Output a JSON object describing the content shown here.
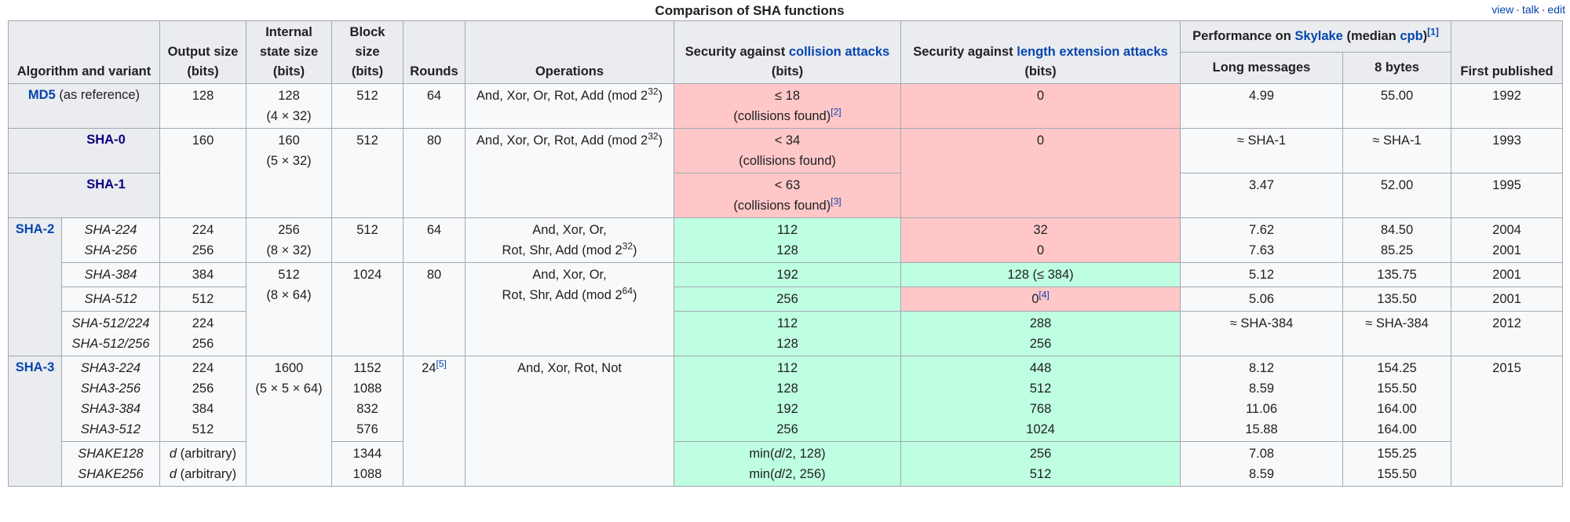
{
  "caption": "Comparison of SHA functions",
  "vte": {
    "view": "view",
    "talk": "talk",
    "edit": "edit",
    "sep": "·"
  },
  "headers": {
    "algorithm": "Algorithm and variant",
    "output_size": [
      "Output size",
      "(bits)"
    ],
    "state_size": [
      "Internal",
      "state size",
      "(bits)"
    ],
    "block_size": [
      "Block size",
      "(bits)"
    ],
    "rounds": "Rounds",
    "operations": "Operations",
    "collision": {
      "pre": "Security against ",
      "link": "collision attacks",
      "unit": "(bits)"
    },
    "length_ext": {
      "pre": "Security against ",
      "link": "length extension attacks",
      "unit": "(bits)"
    },
    "performance": {
      "pre": "Performance on ",
      "link1": "Skylake",
      "mid": " (median ",
      "link2": "cpb",
      "post": ")",
      "ref": "[1]"
    },
    "long_messages": "Long messages",
    "eight_bytes": "8 bytes",
    "first_published": "First published"
  },
  "md5": {
    "name": "MD5",
    "note": " (as reference)",
    "output": "128",
    "state": [
      "128",
      "(4 × 32)"
    ],
    "block": "512",
    "rounds": "64",
    "ops_pre": "And, Xor, Or, Rot, Add (mod 2",
    "ops_exp": "32",
    "ops_post": ")",
    "collision": [
      "≤ 18",
      "(collisions found)"
    ],
    "collision_ref": "[2]",
    "length_ext": "0",
    "perf_long": "4.99",
    "perf_8": "55.00",
    "year": "1992"
  },
  "sha0": {
    "name": "SHA-0",
    "output": "160",
    "state": [
      "160",
      "(5 × 32)"
    ],
    "block": "512",
    "rounds": "80",
    "ops_pre": "And, Xor, Or, Rot, Add (mod 2",
    "ops_exp": "32",
    "ops_post": ")",
    "collision": [
      "< 34",
      "(collisions found)"
    ],
    "length_ext": "0",
    "perf_long": "≈ SHA-1",
    "perf_8": "≈ SHA-1",
    "year": "1993"
  },
  "sha1": {
    "name": "SHA-1",
    "collision": [
      "< 63",
      "(collisions found)"
    ],
    "collision_ref": "[3]",
    "perf_long": "3.47",
    "perf_8": "52.00",
    "year": "1995"
  },
  "sha2": {
    "family": "SHA-2",
    "g1": {
      "variants": [
        "SHA-224",
        "SHA-256"
      ],
      "outputs": [
        "224",
        "256"
      ],
      "state": [
        "256",
        "(8 × 32)"
      ],
      "block": "512",
      "rounds": "64",
      "ops_line1": "And, Xor, Or,",
      "ops_pre": "Rot, Shr, Add (mod 2",
      "ops_exp": "32",
      "ops_post": ")",
      "collision": [
        "112",
        "128"
      ],
      "length_ext": [
        "32",
        "0"
      ],
      "perf_long": [
        "7.62",
        "7.63"
      ],
      "perf_8": [
        "84.50",
        "85.25"
      ],
      "year": [
        "2004",
        "2001"
      ]
    },
    "sha384": {
      "name": "SHA-384",
      "output": "384",
      "collision": "192",
      "length_ext": "128 (≤ 384)",
      "perf_long": "5.12",
      "perf_8": "135.75",
      "year": "2001"
    },
    "sha512": {
      "name": "SHA-512",
      "output": "512",
      "collision": "256",
      "length_ext": "0",
      "length_ext_ref": "[4]",
      "perf_long": "5.06",
      "perf_8": "135.50",
      "year": "2001"
    },
    "g2": {
      "state": [
        "512",
        "(8 × 64)"
      ],
      "block": "1024",
      "rounds": "80",
      "ops_line1": "And, Xor, Or,",
      "ops_pre": "Rot, Shr, Add (mod 2",
      "ops_exp": "64",
      "ops_post": ")"
    },
    "trunc": {
      "variants": [
        "SHA-512/224",
        "SHA-512/256"
      ],
      "outputs": [
        "224",
        "256"
      ],
      "collision": [
        "112",
        "128"
      ],
      "length_ext": [
        "288",
        "256"
      ],
      "perf_long": "≈ SHA-384",
      "perf_8": "≈ SHA-384",
      "year": "2012"
    }
  },
  "sha3": {
    "family": "SHA-3",
    "main": {
      "variants": [
        "SHA3-224",
        "SHA3-256",
        "SHA3-384",
        "SHA3-512"
      ],
      "outputs": [
        "224",
        "256",
        "384",
        "512"
      ],
      "state": [
        "1600",
        "(5 × 5 × 64)"
      ],
      "blocks": [
        "1152",
        "1088",
        "832",
        "576"
      ],
      "rounds": "24",
      "rounds_ref": "[5]",
      "ops": "And, Xor, Rot, Not",
      "collision": [
        "112",
        "128",
        "192",
        "256"
      ],
      "length_ext": [
        "448",
        "512",
        "768",
        "1024"
      ],
      "perf_long": [
        "8.12",
        "8.59",
        "11.06",
        "15.88"
      ],
      "perf_8": [
        "154.25",
        "155.50",
        "164.00",
        "164.00"
      ],
      "year": "2015"
    },
    "shake": {
      "variants": [
        "SHAKE128",
        "SHAKE256"
      ],
      "out_var": "d",
      "out_suffix": " (arbitrary)",
      "blocks": [
        "1344",
        "1088"
      ],
      "coll_pre": "min(",
      "coll_var": "d",
      "coll_mid": [
        "/2, 128)",
        "/2, 256)"
      ],
      "length_ext": [
        "256",
        "512"
      ],
      "perf_long": [
        "7.08",
        "8.59"
      ],
      "perf_8": [
        "155.25",
        "155.50"
      ]
    }
  },
  "colors": {
    "red": "#ffc7c8",
    "green": "#bfffe1",
    "header": "#eaecf0",
    "link": "#0645ad"
  }
}
